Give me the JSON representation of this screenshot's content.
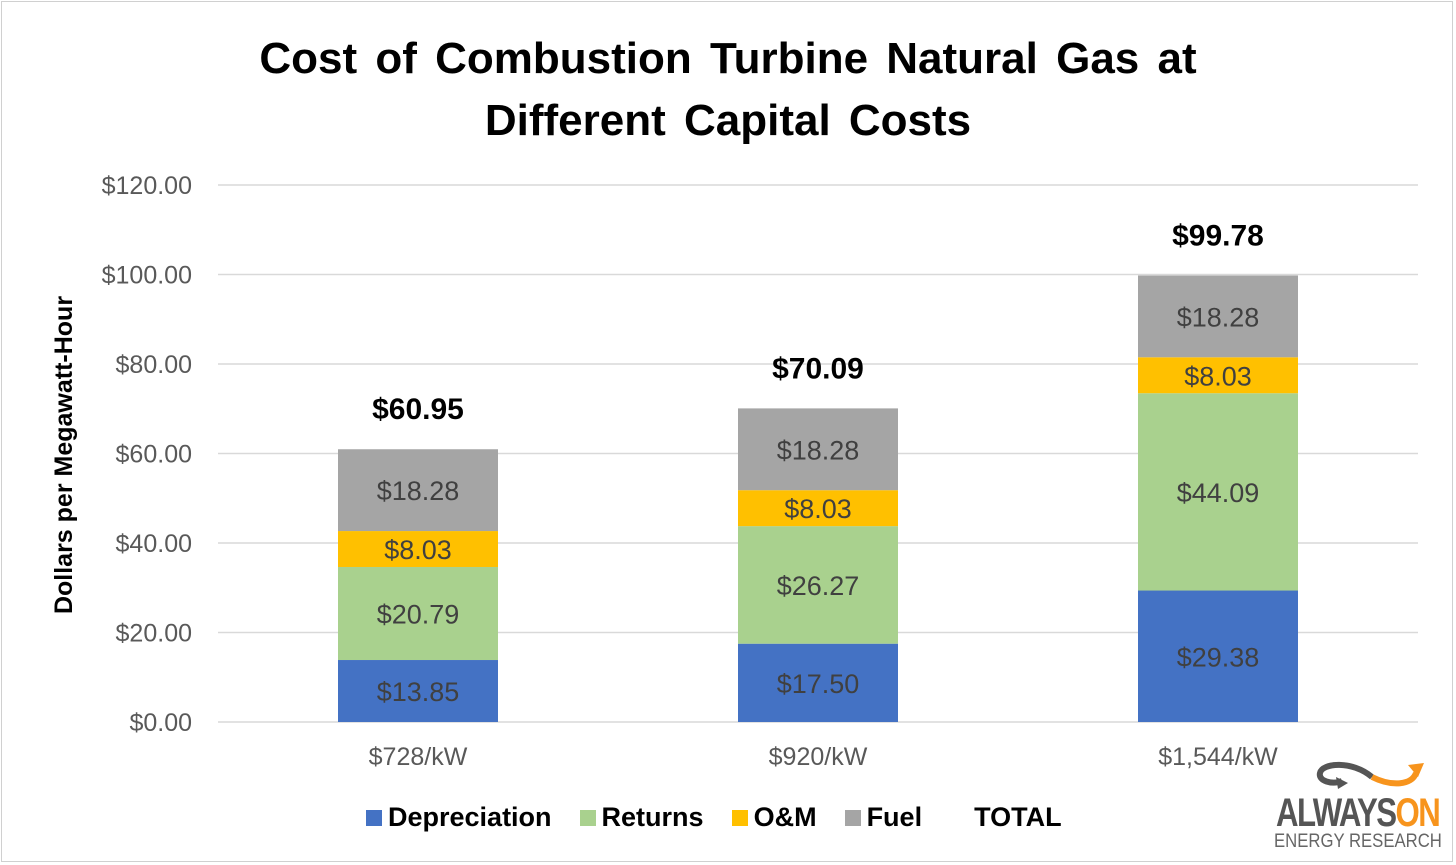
{
  "chart_data": {
    "type": "bar",
    "stacked": true,
    "title": "Cost of Combustion Turbine Natural Gas at Different Capital Costs",
    "title_lines": [
      "Cost of Combustion Turbine Natural Gas at",
      "Different Capital Costs"
    ],
    "xlabel": "",
    "ylabel": "Dollars per Megawatt-Hour",
    "ylim": [
      0,
      120
    ],
    "yticks": [
      0,
      20,
      40,
      60,
      80,
      100,
      120
    ],
    "ytick_labels": [
      "$0.00",
      "$20.00",
      "$40.00",
      "$60.00",
      "$80.00",
      "$100.00",
      "$120.00"
    ],
    "grid": true,
    "legend_position": "bottom",
    "categories": [
      "$728/kW",
      "$920/kW",
      "$1,544/kW"
    ],
    "series": [
      {
        "name": "Depreciation",
        "color": "#4472c4",
        "values": [
          13.85,
          17.5,
          29.38
        ],
        "labels": [
          "$13.85",
          "$17.50",
          "$29.38"
        ]
      },
      {
        "name": "Returns",
        "color": "#a9d18e",
        "values": [
          20.79,
          26.27,
          44.09
        ],
        "labels": [
          "$20.79",
          "$26.27",
          "$44.09"
        ]
      },
      {
        "name": "O&M",
        "color": "#ffc000",
        "values": [
          8.03,
          8.03,
          8.03
        ],
        "labels": [
          "$8.03",
          "$8.03",
          "$8.03"
        ]
      },
      {
        "name": "Fuel",
        "color": "#a5a5a5",
        "values": [
          18.28,
          18.28,
          18.28
        ],
        "labels": [
          "$18.28",
          "$18.28",
          "$18.28"
        ]
      }
    ],
    "totals": {
      "name": "TOTAL",
      "values": [
        60.95,
        70.09,
        99.78
      ],
      "labels": [
        "$60.95",
        "$70.09",
        "$99.78"
      ]
    }
  },
  "logo": {
    "text": "ALWAYSON",
    "text_main": "ALWAYS",
    "text_accent": "ON",
    "subtitle": "ENERGY RESEARCH"
  }
}
